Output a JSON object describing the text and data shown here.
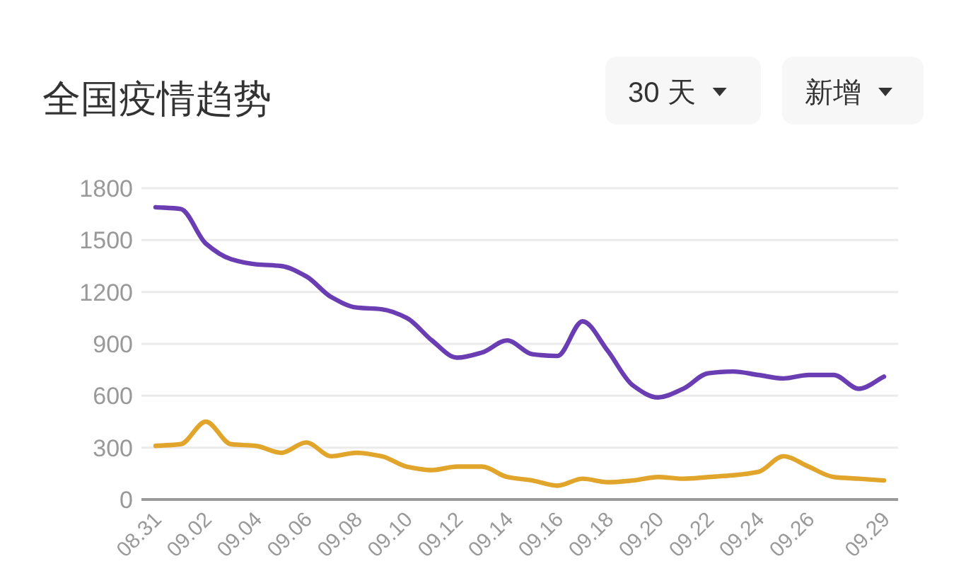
{
  "chart_data": {
    "type": "line",
    "title": "全国疫情趋势",
    "annotations": [
      "30 天",
      "新增"
    ],
    "categories": [
      "08.31",
      null,
      "09.02",
      null,
      "09.04",
      null,
      "09.06",
      null,
      "09.08",
      null,
      "09.10",
      null,
      "09.12",
      null,
      "09.14",
      null,
      "09.16",
      null,
      "09.18",
      null,
      "09.20",
      null,
      "09.22",
      null,
      "09.24",
      null,
      "09.26",
      null,
      null,
      "09.29"
    ],
    "series": [
      {
        "color": "#6a3db3",
        "values": [
          1690,
          1680,
          1480,
          1390,
          1360,
          1350,
          1290,
          1170,
          1110,
          1100,
          1050,
          920,
          820,
          850,
          920,
          840,
          830,
          1030,
          860,
          660,
          590,
          640,
          730,
          740,
          720,
          700,
          720,
          720,
          640,
          710
        ]
      },
      {
        "color": "#e2a52c",
        "values": [
          310,
          320,
          450,
          320,
          310,
          270,
          330,
          250,
          270,
          250,
          190,
          170,
          190,
          190,
          130,
          110,
          80,
          120,
          100,
          110,
          130,
          120,
          130,
          140,
          160,
          250,
          190,
          130,
          120,
          110
        ]
      }
    ],
    "ylim": [
      0,
      1800
    ],
    "yticks": [
      0,
      300,
      600,
      900,
      1200,
      1500,
      1800
    ],
    "grid": "y"
  }
}
